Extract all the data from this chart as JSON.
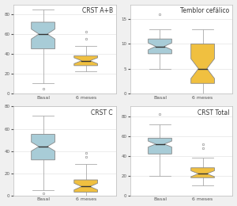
{
  "panels": [
    {
      "title": "CRST A+B",
      "ylim": [
        0,
        90
      ],
      "yticks": [
        0,
        20,
        40,
        60,
        80
      ],
      "basal": {
        "q1": 45,
        "median": 60,
        "q3": 72,
        "whislo": 10,
        "whishi": 85,
        "fliers_high": [],
        "fliers_low": [
          5
        ],
        "ci_low": 55,
        "ci_high": 65
      },
      "meses": {
        "q1": 28,
        "median": 33,
        "q3": 38,
        "whislo": 22,
        "whishi": 48,
        "fliers_high": [
          55,
          62
        ],
        "fliers_low": [],
        "ci_low": 30,
        "ci_high": 36
      }
    },
    {
      "title": "Temblor cefálico",
      "ylim": [
        0,
        18
      ],
      "yticks": [
        0,
        5,
        10,
        15
      ],
      "basal": {
        "q1": 8,
        "median": 9.5,
        "q3": 11,
        "whislo": 5,
        "whishi": 13,
        "fliers_high": [
          16
        ],
        "fliers_low": [],
        "ci_low": 8.8,
        "ci_high": 10.2
      },
      "meses": {
        "q1": 2,
        "median": 5,
        "q3": 10,
        "whislo": 0,
        "whishi": 13,
        "fliers_high": [],
        "fliers_low": [],
        "ci_low": 3,
        "ci_high": 7
      }
    },
    {
      "title": "CRST C",
      "ylim": [
        0,
        80
      ],
      "yticks": [
        0,
        20,
        40,
        60,
        80
      ],
      "basal": {
        "q1": 32,
        "median": 44,
        "q3": 55,
        "whislo": 5,
        "whishi": 72,
        "fliers_high": [],
        "fliers_low": [
          2
        ],
        "ci_low": 40,
        "ci_high": 48
      },
      "meses": {
        "q1": 3,
        "median": 8,
        "q3": 14,
        "whislo": 0,
        "whishi": 28,
        "fliers_high": [
          35,
          38
        ],
        "fliers_low": [],
        "ci_low": 5,
        "ci_high": 11
      }
    },
    {
      "title": "CRST Total",
      "ylim": [
        0,
        90
      ],
      "yticks": [
        0,
        20,
        40,
        60,
        80
      ],
      "basal": {
        "q1": 42,
        "median": 52,
        "q3": 58,
        "whislo": 20,
        "whishi": 72,
        "fliers_high": [
          82
        ],
        "fliers_low": [],
        "ci_low": 49,
        "ci_high": 55
      },
      "meses": {
        "q1": 18,
        "median": 22,
        "q3": 28,
        "whislo": 10,
        "whishi": 38,
        "fliers_high": [
          48,
          52
        ],
        "fliers_low": [],
        "ci_low": 19,
        "ci_high": 25
      }
    }
  ],
  "color_basal": "#a8ccd7",
  "color_meses": "#f0c040",
  "xlabel_basal": "Basal",
  "xlabel_meses": "6 meses",
  "bg_color": "#f0f0f0",
  "box_bg": "#ffffff",
  "title_fontsize": 5.5,
  "label_fontsize": 4.5,
  "tick_fontsize": 4.0,
  "linewidth": 0.6,
  "medianline_color": "#333333",
  "whisker_color": "#aaaaaa",
  "edge_color": "#888888"
}
